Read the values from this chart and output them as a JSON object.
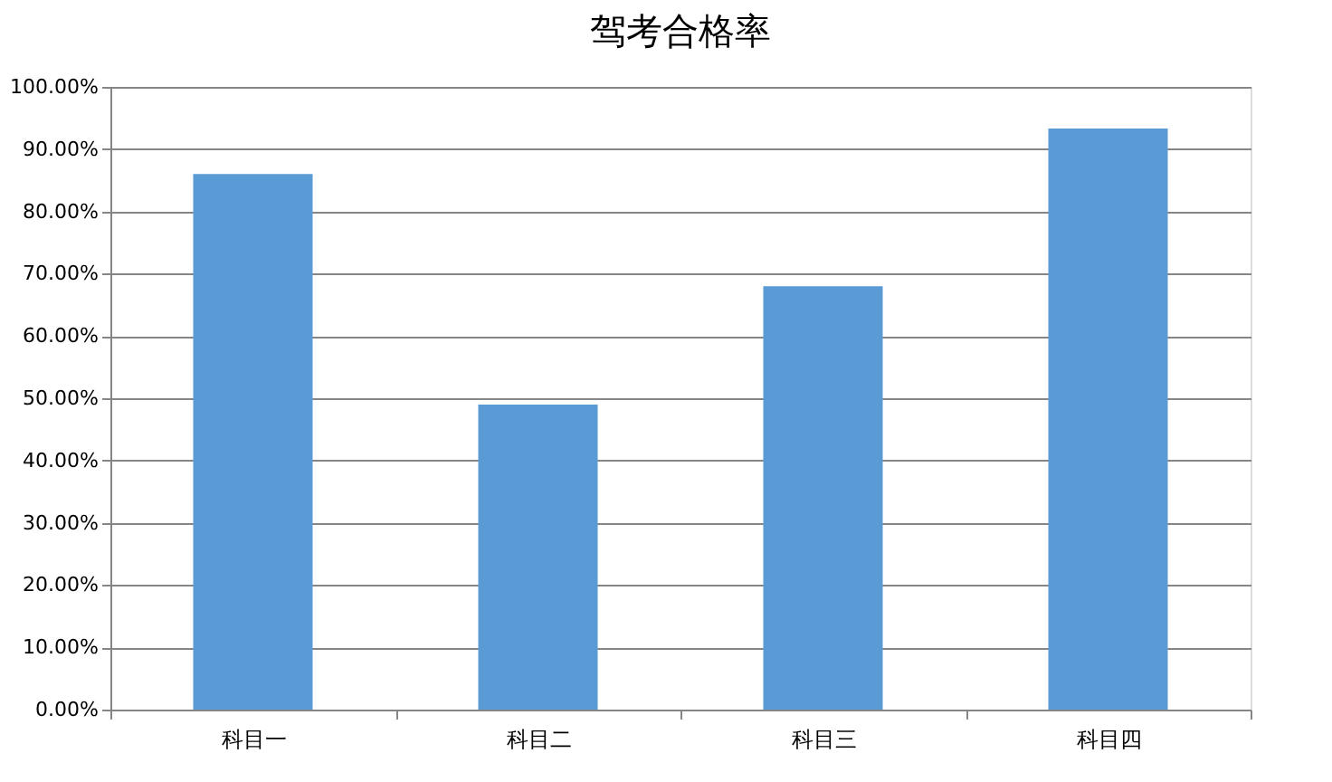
{
  "chart_data": {
    "type": "bar",
    "title": "驾考合格率",
    "categories": [
      "科目一",
      "科目二",
      "科目三",
      "科目四"
    ],
    "values": [
      86,
      49,
      68,
      93.3
    ],
    "color": "#5b9bd5",
    "ylim": [
      0,
      100
    ],
    "yticks": [
      {
        "value": 0,
        "label": "0.00%"
      },
      {
        "value": 10,
        "label": "10.00%"
      },
      {
        "value": 20,
        "label": "20.00%"
      },
      {
        "value": 30,
        "label": "30.00%"
      },
      {
        "value": 40,
        "label": "40.00%"
      },
      {
        "value": 50,
        "label": "50.00%"
      },
      {
        "value": 60,
        "label": "60.00%"
      },
      {
        "value": 70,
        "label": "70.00%"
      },
      {
        "value": 80,
        "label": "80.00%"
      },
      {
        "value": 90,
        "label": "90.00%"
      },
      {
        "value": 100,
        "label": "100.00%"
      }
    ],
    "grid": "y"
  }
}
